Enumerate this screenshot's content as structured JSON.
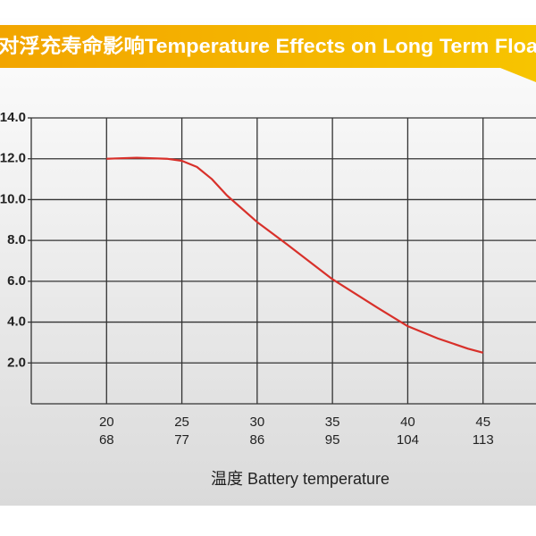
{
  "chart_data": {
    "type": "line",
    "title": "对浮充寿命影响Temperature Effects on Long Term Floa",
    "x_label": "温度  Battery temperature",
    "x": [
      20,
      22,
      24,
      25,
      26,
      27,
      28,
      30,
      32,
      35,
      38,
      40,
      42,
      44,
      45
    ],
    "series": [
      {
        "color": "#d8302a",
        "values": [
          12.0,
          12.05,
          12.0,
          11.9,
          11.6,
          11.0,
          10.2,
          8.9,
          7.8,
          6.1,
          4.7,
          3.8,
          3.2,
          2.7,
          2.5
        ]
      }
    ],
    "xlim": [
      15,
      50
    ],
    "xticks": [
      20,
      25,
      30,
      35,
      40,
      45
    ],
    "xticks_fahrenheit": [
      68,
      77,
      86,
      95,
      104,
      113
    ],
    "ylim": [
      0,
      14
    ],
    "yticks": [
      {
        "value": 2,
        "label": "2.0"
      },
      {
        "value": 4,
        "label": "4.0"
      },
      {
        "value": 6,
        "label": "6.0"
      },
      {
        "value": 8,
        "label": "8.0"
      },
      {
        "value": 10,
        "label": "10.0"
      },
      {
        "value": 12,
        "label": "12.0"
      },
      {
        "value": 14,
        "label": "14.0"
      }
    ],
    "grid": true
  }
}
